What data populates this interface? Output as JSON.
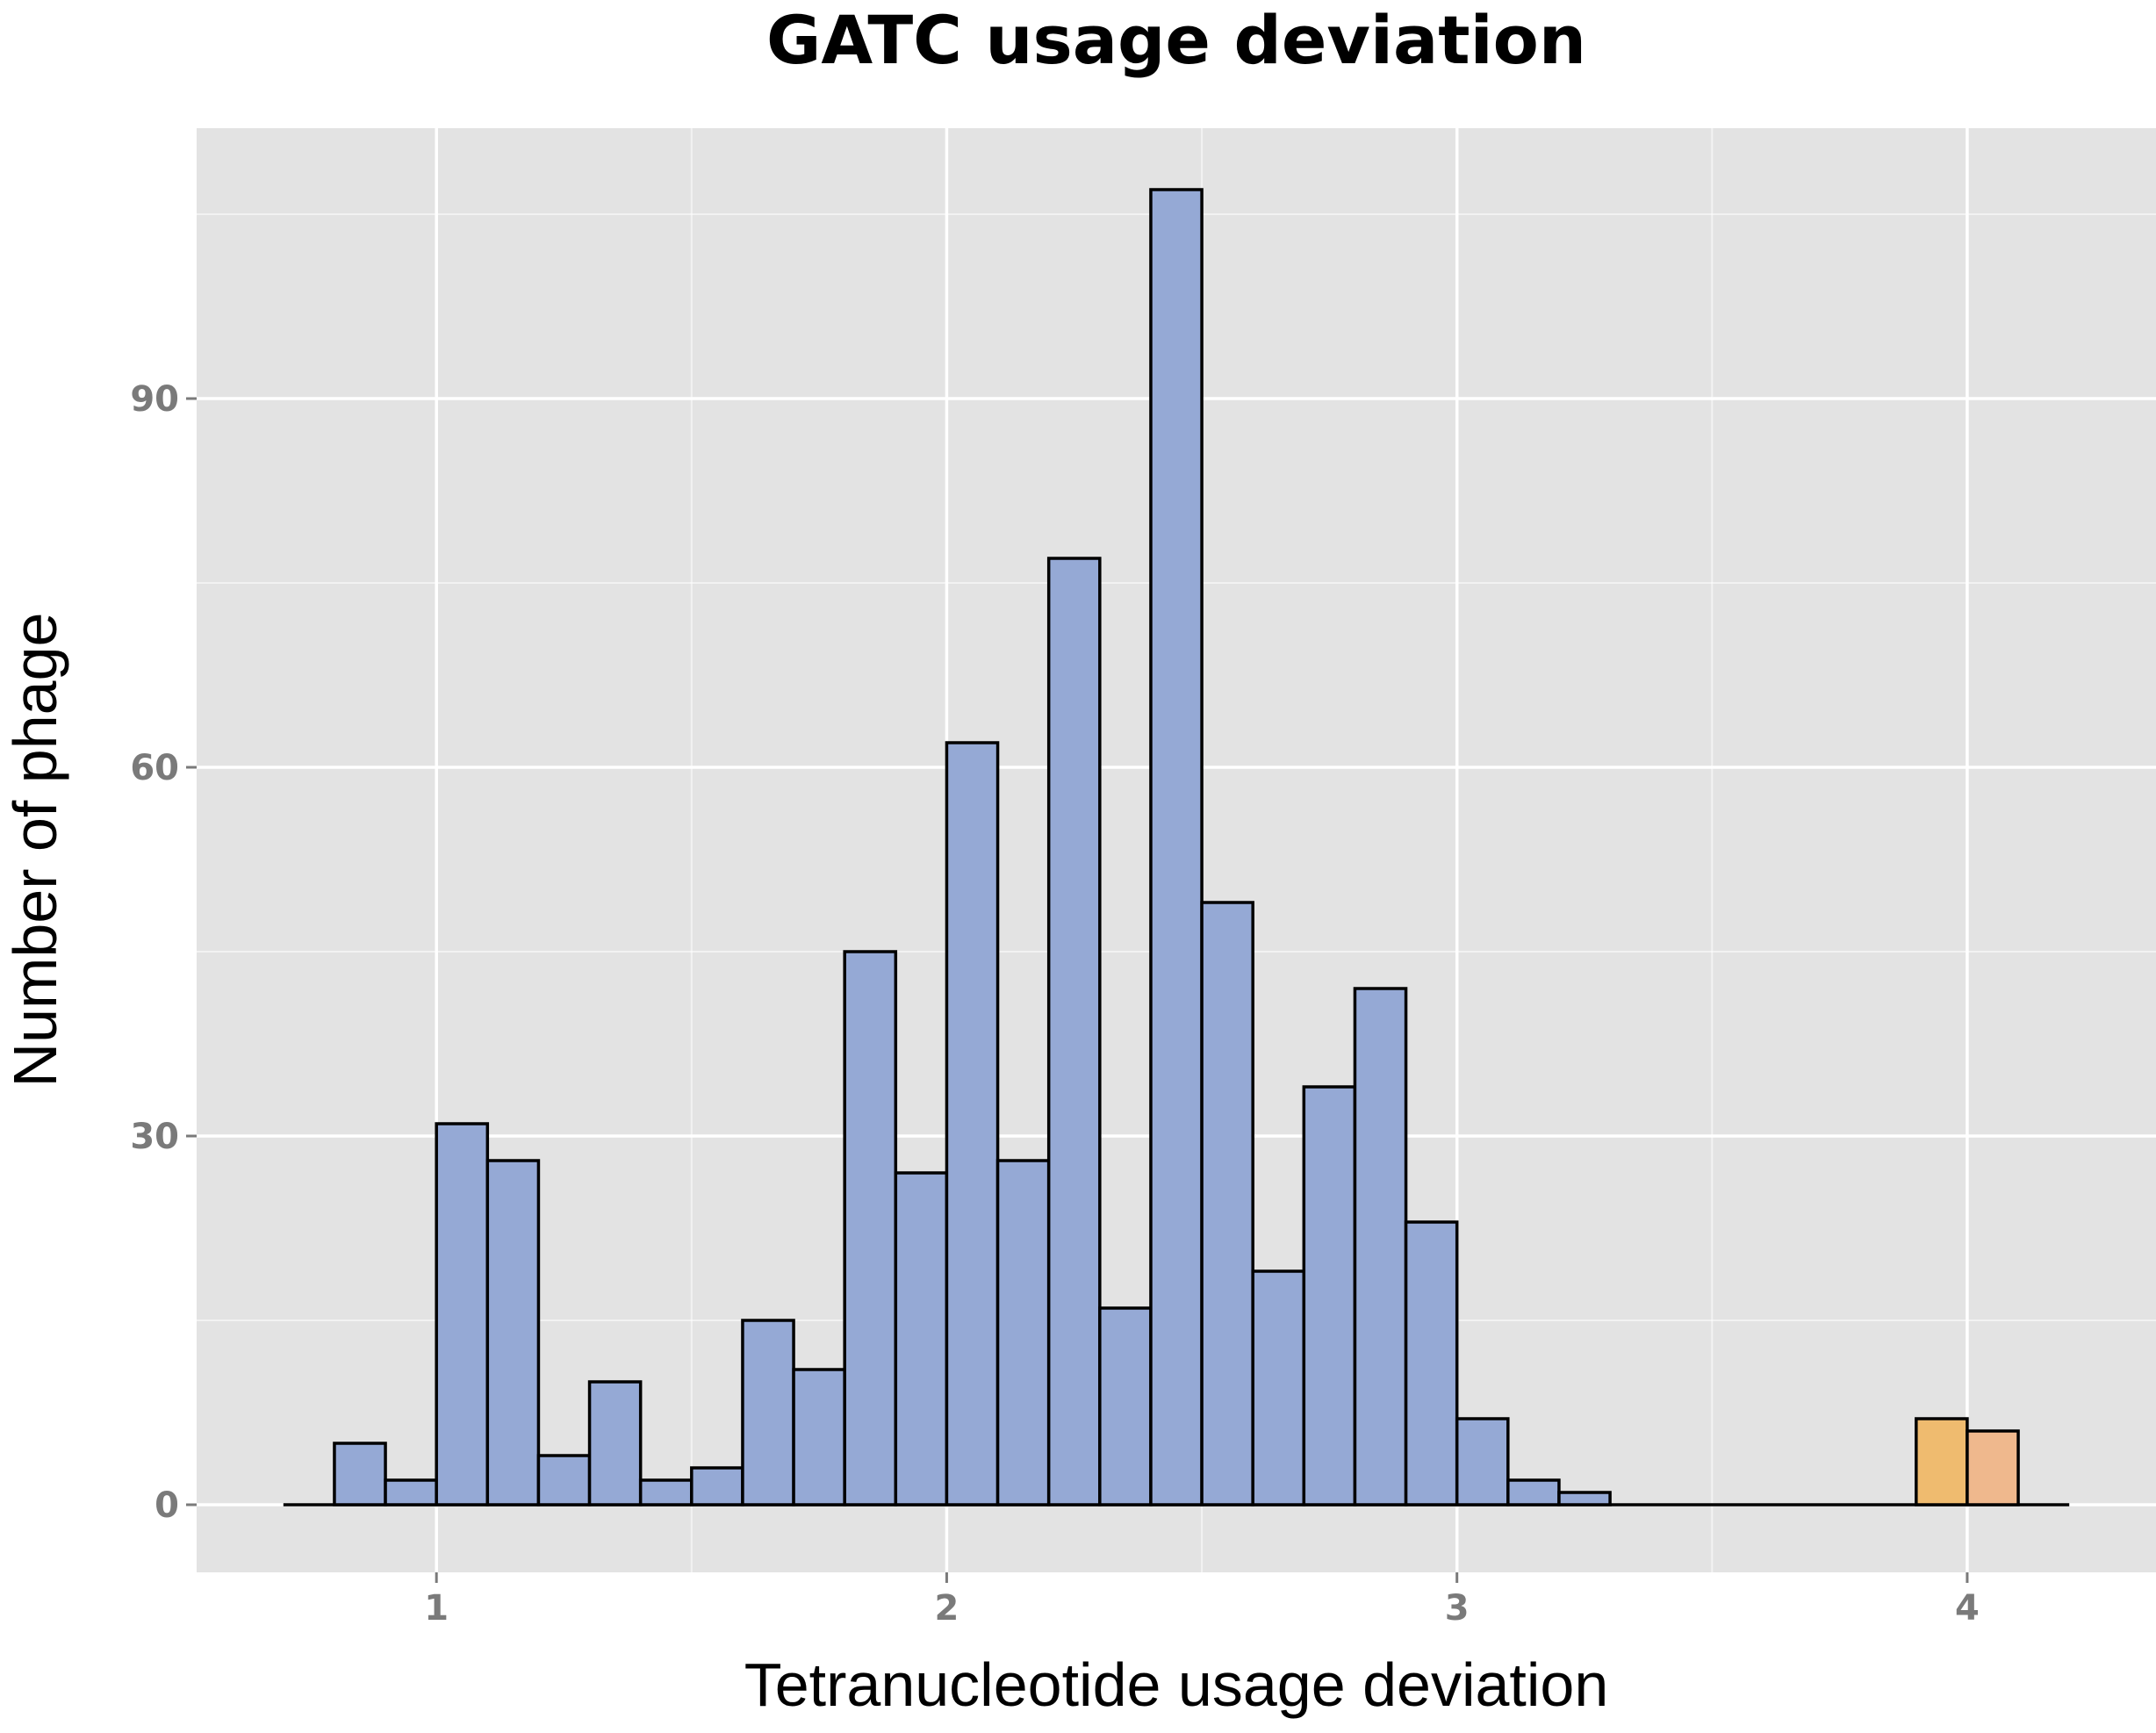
{
  "chart_data": {
    "type": "bar",
    "title": "GATC usage deviation",
    "xlabel": "Tetranucleotide usage deviation",
    "ylabel": "Number of phage",
    "xlim": [
      0.53,
      4.37
    ],
    "ylim": [
      -5.5,
      112
    ],
    "x_ticks": [
      1,
      2,
      3,
      4
    ],
    "x_tick_labels": [
      "1",
      "2",
      "3",
      "4"
    ],
    "y_ticks": [
      0,
      30,
      60,
      90
    ],
    "y_tick_labels": [
      "0",
      "30",
      "60",
      "90"
    ],
    "bin_width": 0.1,
    "baseline_range": [
      0.7,
      4.2
    ],
    "panel_background": "#e3e3e3",
    "grid": true,
    "grid_color": "#ffffff",
    "legend": "none",
    "series": [
      {
        "color": "#95a9d5",
        "bins": [
          {
            "x": 0.85,
            "count": 5
          },
          {
            "x": 0.95,
            "count": 2
          },
          {
            "x": 1.05,
            "count": 31
          },
          {
            "x": 1.15,
            "count": 28
          },
          {
            "x": 1.25,
            "count": 4
          },
          {
            "x": 1.35,
            "count": 10
          },
          {
            "x": 1.45,
            "count": 2
          },
          {
            "x": 1.55,
            "count": 3
          },
          {
            "x": 1.65,
            "count": 15
          },
          {
            "x": 1.75,
            "count": 11
          },
          {
            "x": 1.85,
            "count": 45
          },
          {
            "x": 1.95,
            "count": 27
          },
          {
            "x": 2.05,
            "count": 62
          },
          {
            "x": 2.15,
            "count": 28
          },
          {
            "x": 2.25,
            "count": 77
          },
          {
            "x": 2.35,
            "count": 16
          },
          {
            "x": 2.45,
            "count": 107
          },
          {
            "x": 2.55,
            "count": 49
          },
          {
            "x": 2.65,
            "count": 19
          },
          {
            "x": 2.75,
            "count": 34
          },
          {
            "x": 2.85,
            "count": 42
          },
          {
            "x": 2.95,
            "count": 23
          },
          {
            "x": 3.05,
            "count": 7
          },
          {
            "x": 3.15,
            "count": 2
          },
          {
            "x": 3.25,
            "count": 1
          }
        ]
      },
      {
        "color": "#efbb6f",
        "bins": [
          {
            "x": 3.95,
            "count": 7
          }
        ]
      },
      {
        "color": "#efb88d",
        "bins": [
          {
            "x": 4.05,
            "count": 6
          }
        ]
      }
    ]
  }
}
